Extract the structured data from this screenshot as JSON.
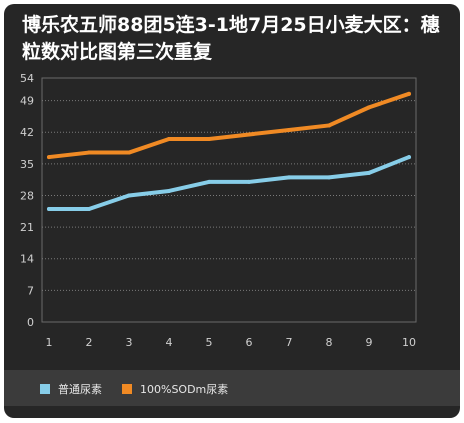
{
  "chart_data": {
    "type": "line",
    "title": "博乐农五师88团5连3-1地7月25日小麦大区：穗粒数对比图第三次重复",
    "categories": [
      "1",
      "2",
      "3",
      "4",
      "5",
      "6",
      "7",
      "8",
      "9",
      "10"
    ],
    "yticks": [
      "0",
      "7",
      "14",
      "21",
      "28",
      "35",
      "42",
      "49",
      "54"
    ],
    "ylim": [
      0,
      54
    ],
    "grid": true,
    "legend_position": "bottom",
    "series": [
      {
        "name": "普通尿素",
        "color": "#87cde8",
        "values": [
          25,
          25,
          28,
          29,
          31,
          31,
          32,
          32,
          33,
          36.5
        ]
      },
      {
        "name": "100%SODm尿素",
        "color": "#f08a24",
        "values": [
          36.5,
          37.5,
          37.5,
          40.5,
          40.5,
          41.5,
          42.5,
          43.5,
          47.5,
          50.5
        ]
      }
    ]
  }
}
